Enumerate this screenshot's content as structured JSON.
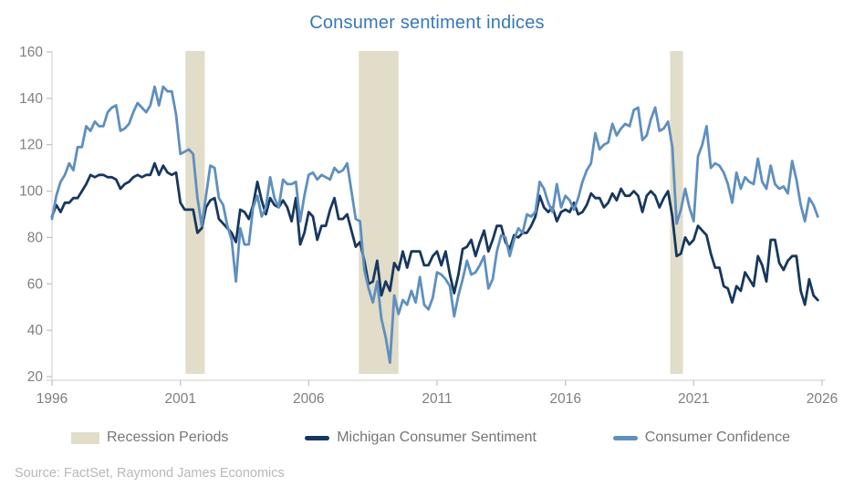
{
  "title": "Consumer sentiment indices",
  "source": "Source: FactSet, Raymond James Economics",
  "colors": {
    "title": "#3778B8",
    "michigan": "#17375E",
    "confidence": "#5F8FBF",
    "recession": "#E2DDC9",
    "axis_line": "#D6D6D6",
    "tick_mark": "#C0C0C0",
    "tick_label": "#7F7F7F",
    "legend_text": "#767676",
    "source_text": "#B8B8B8"
  },
  "legend": {
    "items": [
      {
        "id": "recession",
        "label": "Recession Periods",
        "swatch": "rect"
      },
      {
        "id": "michigan",
        "label": "Michigan Consumer Sentiment",
        "swatch": "line"
      },
      {
        "id": "confidence",
        "label": "Consumer Confidence",
        "swatch": "line"
      }
    ]
  },
  "chart_data": {
    "type": "line",
    "title": "Consumer sentiment indices",
    "xlabel": "",
    "ylabel": "",
    "grid": false,
    "legend_position": "bottom",
    "xlim": [
      1996,
      2026
    ],
    "ylim": [
      20,
      160
    ],
    "xticks": [
      1996,
      2001,
      2006,
      2011,
      2016,
      2021,
      2026
    ],
    "yticks": [
      20,
      40,
      60,
      80,
      100,
      120,
      140,
      160
    ],
    "x_start": 1996.0,
    "x_step_years": 0.1666667,
    "x_frequency": "every 2 months, Jan 1996 - Nov 2025",
    "recession_bands": [
      [
        2001.2,
        2001.95
      ],
      [
        2007.95,
        2009.5
      ],
      [
        2020.08,
        2020.58
      ]
    ],
    "series": [
      {
        "name": "Michigan Consumer Sentiment",
        "color_key": "michigan",
        "values": [
          89,
          94,
          91,
          95,
          95,
          97,
          97,
          100,
          103,
          107,
          106,
          107,
          107,
          106,
          106,
          105,
          101,
          103,
          104,
          106,
          107,
          106,
          107,
          107,
          112,
          107,
          111,
          108,
          107,
          108,
          95,
          92,
          92,
          92,
          82,
          84,
          93,
          96,
          97,
          88,
          86,
          84,
          82,
          78,
          92,
          91,
          88,
          94,
          104,
          96,
          90,
          97,
          94,
          93,
          96,
          93,
          87,
          97,
          77,
          82,
          91,
          89,
          79,
          85,
          85,
          92,
          97,
          88,
          88,
          90,
          83,
          76,
          78,
          70,
          60,
          61,
          70,
          55,
          61,
          57,
          69,
          66,
          74,
          67,
          74,
          74,
          74,
          68,
          68,
          72,
          74,
          68,
          74,
          64,
          56,
          64,
          75,
          76,
          79,
          72,
          78,
          83,
          74,
          79,
          85,
          85,
          78,
          75,
          81,
          80,
          82,
          82,
          85,
          89,
          98,
          93,
          91,
          93,
          87,
          91,
          92,
          91,
          95,
          90,
          91,
          94,
          99,
          97,
          97,
          93,
          95,
          99,
          96,
          101,
          98,
          98,
          100,
          98,
          91,
          98,
          100,
          98,
          93,
          97,
          100,
          89,
          72,
          73,
          80,
          77,
          79,
          85,
          83,
          81,
          73,
          67,
          67,
          59,
          58,
          52,
          59,
          57,
          65,
          62,
          59,
          72,
          68,
          61,
          79,
          79,
          69,
          66,
          70,
          72,
          72,
          57,
          51,
          62,
          55,
          53
        ]
      },
      {
        "name": "Consumer Confidence",
        "color_key": "confidence",
        "values": [
          88,
          98,
          104,
          107,
          112,
          109,
          119,
          119,
          128,
          126,
          130,
          128,
          128,
          134,
          136,
          137,
          126,
          127,
          129,
          134,
          138,
          136,
          134,
          137,
          145,
          137,
          145,
          143,
          143,
          133,
          116,
          117,
          118,
          116,
          97,
          85,
          98,
          111,
          110,
          97,
          94,
          85,
          79,
          61,
          84,
          77,
          77,
          93,
          98,
          89,
          93,
          106,
          97,
          93,
          105,
          103,
          103,
          104,
          87,
          98,
          107,
          108,
          105,
          107,
          106,
          105,
          110,
          108,
          109,
          112,
          100,
          88,
          87,
          66,
          58,
          52,
          61,
          45,
          37,
          26,
          55,
          47,
          53,
          51,
          57,
          52,
          63,
          51,
          49,
          54,
          65,
          64,
          62,
          59,
          46,
          55,
          62,
          70,
          64,
          65,
          68,
          72,
          58,
          62,
          74,
          81,
          80,
          72,
          79,
          84,
          82,
          90,
          89,
          91,
          104,
          101,
          95,
          91,
          103,
          93,
          98,
          96,
          92,
          97,
          104,
          109,
          112,
          125,
          118,
          120,
          121,
          129,
          124,
          127,
          129,
          128,
          135,
          136,
          122,
          124,
          131,
          136,
          126,
          127,
          130,
          119,
          86,
          92,
          101,
          93,
          87,
          115,
          120,
          128,
          110,
          112,
          111,
          108,
          103,
          95,
          108,
          101,
          106,
          104,
          103,
          114,
          104,
          101,
          111,
          103,
          101,
          102,
          99,
          113,
          105,
          94,
          87,
          97,
          94,
          89
        ]
      }
    ]
  }
}
